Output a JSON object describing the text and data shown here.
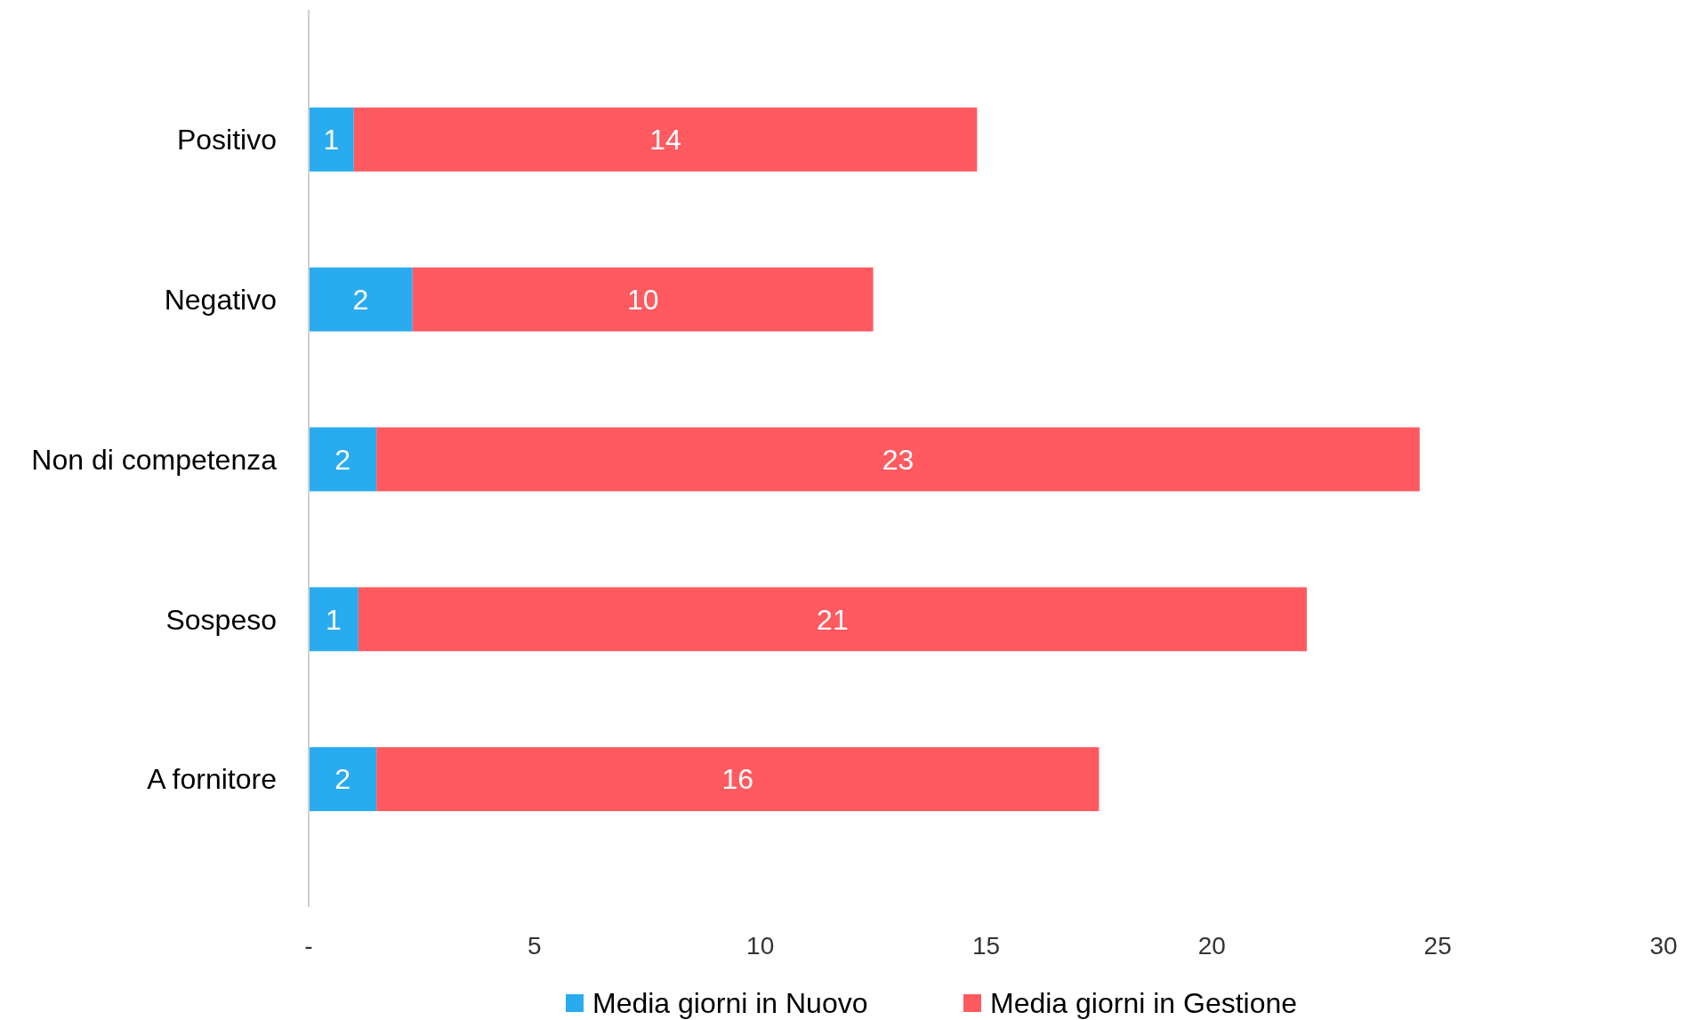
{
  "chart_data": {
    "type": "bar",
    "orientation": "horizontal",
    "stacked": true,
    "categories": [
      "Positivo",
      "Negativo",
      "Non di competenza",
      "Sospeso",
      "A fornitore"
    ],
    "series": [
      {
        "name": "Media giorni in Nuovo",
        "color": "#29abf0",
        "values": [
          1.0,
          2.3,
          1.5,
          1.1,
          1.5
        ],
        "value_labels": [
          "1",
          "2",
          "2",
          "1",
          "2"
        ]
      },
      {
        "name": "Media giorni in Gestione",
        "color": "#fe5a5f",
        "values": [
          13.8,
          10.2,
          23.1,
          21.0,
          16.0
        ],
        "value_labels": [
          "14",
          "10",
          "23",
          "21",
          "16"
        ]
      }
    ],
    "xlim": [
      0,
      30
    ],
    "xticks": [
      {
        "value": 0,
        "label": "-"
      },
      5,
      10,
      15,
      20,
      25,
      30
    ],
    "grid": false,
    "legend": "bottom"
  }
}
